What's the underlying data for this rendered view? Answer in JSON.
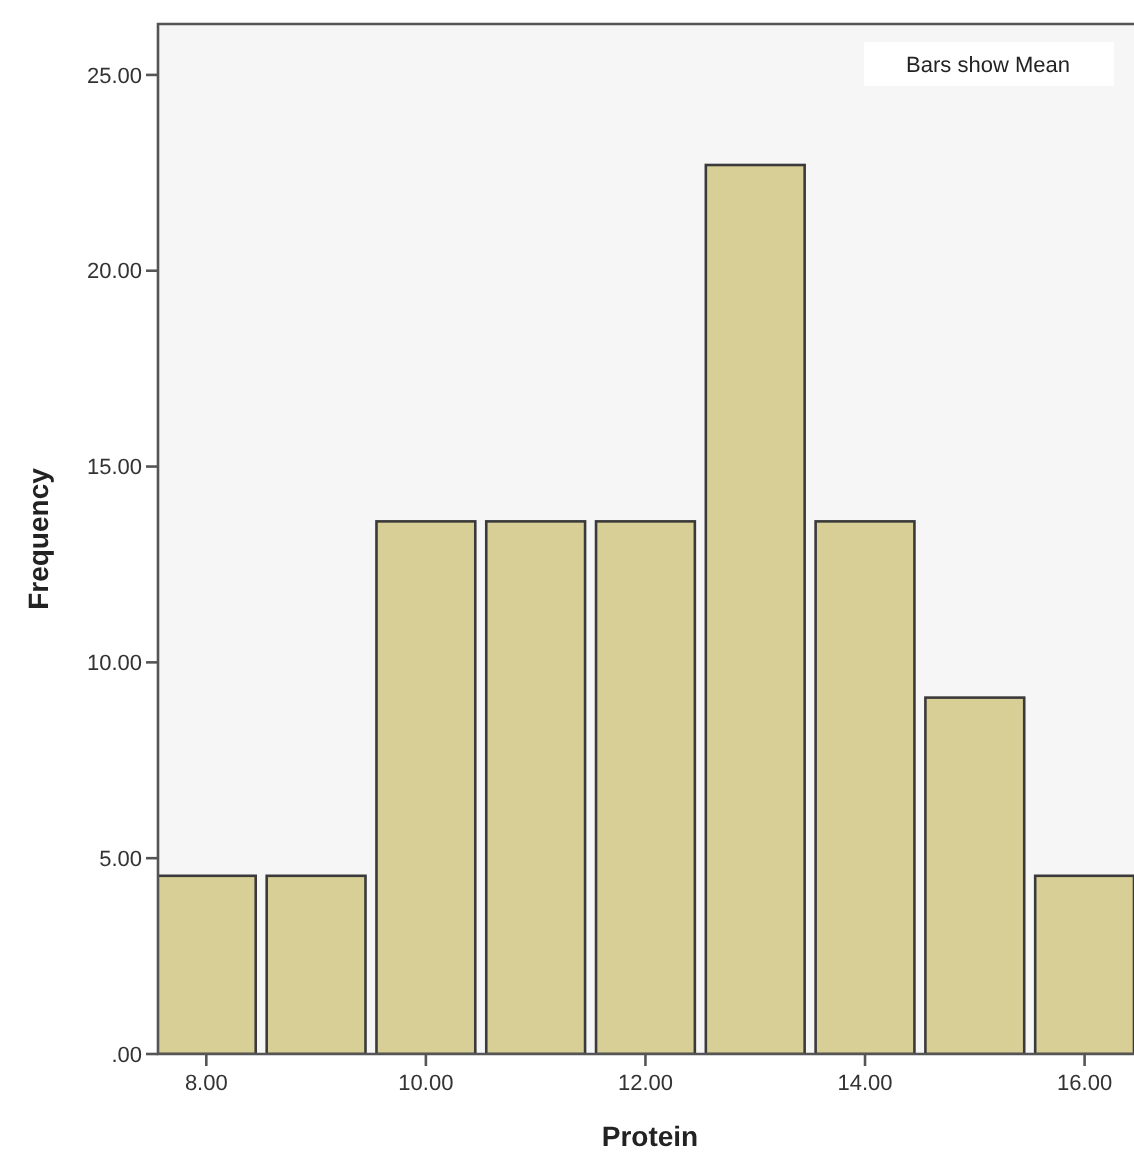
{
  "chart_data": {
    "type": "bar",
    "xlabel": "Protein",
    "ylabel": "Frequency",
    "x": [
      8,
      9,
      10,
      11,
      12,
      13,
      14,
      15,
      16
    ],
    "values": [
      4.55,
      4.55,
      13.6,
      13.6,
      13.6,
      22.7,
      13.6,
      9.1,
      4.55
    ],
    "color": "#d8cf96",
    "xlim": [
      7.56,
      16.45
    ],
    "xticks": [
      {
        "value": 8,
        "label": "8.00"
      },
      {
        "value": 10,
        "label": "10.00"
      },
      {
        "value": 12,
        "label": "12.00"
      },
      {
        "value": 14,
        "label": "14.00"
      },
      {
        "value": 16,
        "label": "16.00"
      }
    ],
    "ylim": [
      0,
      26.3
    ],
    "yticks": [
      {
        "value": 0,
        "label": ".00"
      },
      {
        "value": 5,
        "label": "5.00"
      },
      {
        "value": 10,
        "label": "10.00"
      },
      {
        "value": 15,
        "label": "15.00"
      },
      {
        "value": 20,
        "label": "20.00"
      },
      {
        "value": 25,
        "label": "25.00"
      }
    ],
    "annotations": [
      "Bars show Mean"
    ],
    "grid": false
  }
}
